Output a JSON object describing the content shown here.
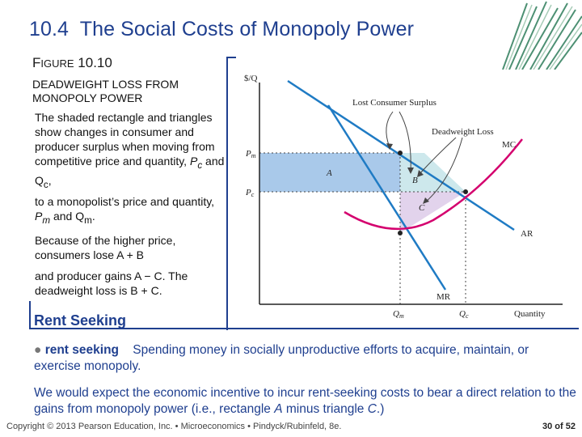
{
  "slide": {
    "number": "10.4",
    "title": "The Social Costs of Monopoly Power"
  },
  "figure": {
    "label_prefix_cap": "F",
    "label_prefix_rest": "IGURE",
    "label_number": "10.10",
    "caption_line1": "DEADWEIGHT LOSS FROM",
    "caption_line2": "MONOPOLY POWER"
  },
  "body": {
    "p1": "The shaded rectangle and triangles show changes in consumer and producer surplus when moving from competitive price and quantity,",
    "p1_pc": "P",
    "p1_pc_sub": "c",
    "p1_and": "and Q",
    "p1_qc_sub": "c",
    "p1_end": ",",
    "p2_start": "to a monopolist’s price and quantity,",
    "p2_pm": "P",
    "p2_pm_sub": "m",
    "p2_and": "and Q",
    "p2_qm_sub": "m",
    "p2_end": ".",
    "p3": "Because of the higher price, consumers lose A + B",
    "p4": "and producer gains A − C. The deadweight loss is B + C."
  },
  "section": {
    "heading": "Rent Seeking"
  },
  "definition": {
    "bullet": "●",
    "term": "rent seeking",
    "text": "Spending money in socially unproductive efforts to acquire, maintain, or exercise monopoly."
  },
  "expectation": {
    "text_start": "We would expect the economic incentive to incur rent-seeking costs to bear a direct relation to the gains from monopoly power (i.e., rectangle",
    "a": "A",
    "minus": "minus triangle",
    "c": "C",
    "text_end": ".)"
  },
  "footer": {
    "copyright": "Copyright © 2013 Pearson Education, Inc. • Microeconomics • Pindyck/Rubinfeld, 8e.",
    "page_current": "30",
    "page_of": "of",
    "page_total": "52"
  },
  "chart_data": {
    "type": "line",
    "ylabel": "$/Q",
    "xlabel": "Quantity",
    "y_ticks": [
      "Pm",
      "Pc"
    ],
    "x_ticks": [
      "Qm",
      "Qc"
    ],
    "curves": [
      "MC",
      "AR",
      "MR"
    ],
    "annotations": [
      "Lost Consumer Surplus",
      "Deadweight Loss"
    ],
    "regions": [
      "A",
      "B",
      "C"
    ],
    "colors": {
      "region_a": "#a9c9ea",
      "region_b": "#cde8ec",
      "region_c": "#e2d3ec",
      "mc_curve": "#d4006e",
      "demand_curve": "#1f7bc4",
      "mr_curve": "#1f7bc4",
      "axis": "#222222"
    }
  },
  "colors": {
    "title": "#1f3f8f",
    "rule": "#1f3f8f"
  }
}
